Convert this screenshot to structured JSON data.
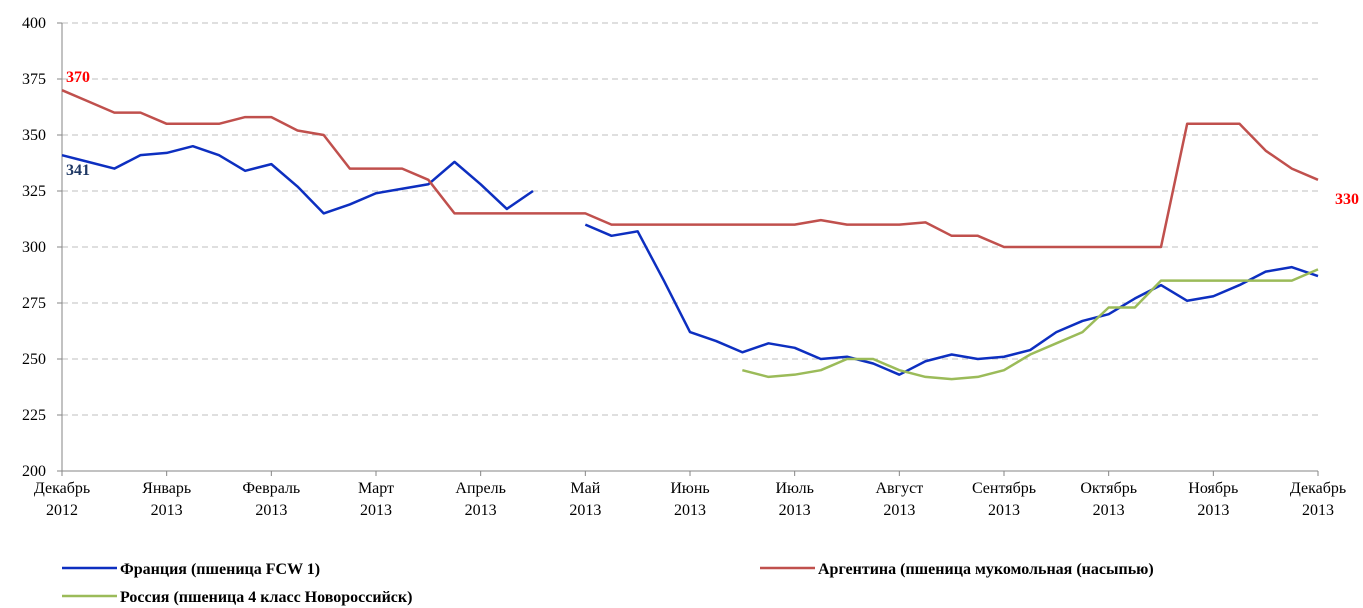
{
  "chart_data": {
    "type": "line",
    "categories": [
      "Декабрь 2012",
      null,
      null,
      null,
      "Январь 2013",
      null,
      null,
      null,
      "Февраль 2013",
      null,
      null,
      null,
      "Март 2013",
      null,
      null,
      null,
      "Апрель 2013",
      null,
      null,
      null,
      "Май 2013",
      null,
      null,
      null,
      "Июнь 2013",
      null,
      null,
      null,
      "Июль 2013",
      null,
      null,
      null,
      "Август 2013",
      null,
      null,
      null,
      "Сентябрь 2013",
      null,
      null,
      null,
      "Октябрь 2013",
      null,
      null,
      null,
      "Ноябрь 2013",
      null,
      null,
      null,
      "Декабрь 2013"
    ],
    "series": [
      {
        "name": "Франция (пшеница FCW 1)",
        "color": "#0d2fc0",
        "label_color": "#1f3864",
        "values": [
          341,
          338,
          335,
          341,
          342,
          345,
          341,
          334,
          337,
          327,
          315,
          319,
          324,
          326,
          328,
          338,
          328,
          317,
          325,
          null,
          310,
          305,
          307,
          285,
          262,
          258,
          253,
          257,
          255,
          250,
          251,
          248,
          243,
          249,
          252,
          250,
          251,
          254,
          262,
          267,
          270,
          277,
          283,
          276,
          278,
          283,
          289,
          291,
          287
        ],
        "value_labels": [
          "341",
          null,
          null,
          null,
          null,
          null,
          null,
          null,
          null,
          null,
          null,
          null,
          null,
          null,
          null,
          null,
          null,
          null,
          null,
          null,
          null,
          null,
          null,
          null,
          null,
          null,
          null,
          null,
          null,
          null,
          null,
          null,
          null,
          null,
          null,
          null,
          null,
          null,
          null,
          null,
          null,
          null,
          null,
          null,
          null,
          null,
          null,
          null,
          null
        ]
      },
      {
        "name": "Аргентина (пшеница мукомольная (насыпью)",
        "color": "#c0504d",
        "label_color": "#ff0000",
        "values": [
          370,
          365,
          360,
          360,
          355,
          355,
          355,
          358,
          358,
          352,
          350,
          335,
          335,
          335,
          330,
          315,
          315,
          315,
          315,
          315,
          315,
          310,
          310,
          310,
          310,
          310,
          310,
          310,
          310,
          312,
          310,
          310,
          310,
          311,
          305,
          305,
          300,
          300,
          300,
          300,
          300,
          300,
          300,
          355,
          355,
          355,
          343,
          335,
          330
        ],
        "value_labels": [
          "370",
          null,
          null,
          null,
          null,
          null,
          null,
          null,
          null,
          null,
          null,
          null,
          null,
          null,
          null,
          null,
          null,
          null,
          null,
          null,
          null,
          null,
          null,
          null,
          null,
          null,
          null,
          null,
          null,
          null,
          null,
          null,
          null,
          null,
          null,
          null,
          null,
          null,
          null,
          null,
          null,
          null,
          null,
          null,
          null,
          null,
          null,
          null,
          "330"
        ]
      },
      {
        "name": "Россия (пшеница 4 класс Новороссийск)",
        "color": "#9bbb59",
        "values": [
          null,
          null,
          null,
          null,
          null,
          null,
          null,
          null,
          null,
          null,
          null,
          null,
          null,
          null,
          null,
          null,
          null,
          null,
          null,
          null,
          null,
          null,
          null,
          null,
          null,
          null,
          245,
          242,
          243,
          245,
          250,
          250,
          245,
          242,
          241,
          242,
          245,
          252,
          257,
          262,
          273,
          273,
          285,
          285,
          285,
          285,
          285,
          285,
          290
        ]
      }
    ],
    "ylim": [
      200,
      400
    ],
    "yticks": [
      200,
      225,
      250,
      275,
      300,
      325,
      350,
      375,
      400
    ],
    "grid": true
  }
}
